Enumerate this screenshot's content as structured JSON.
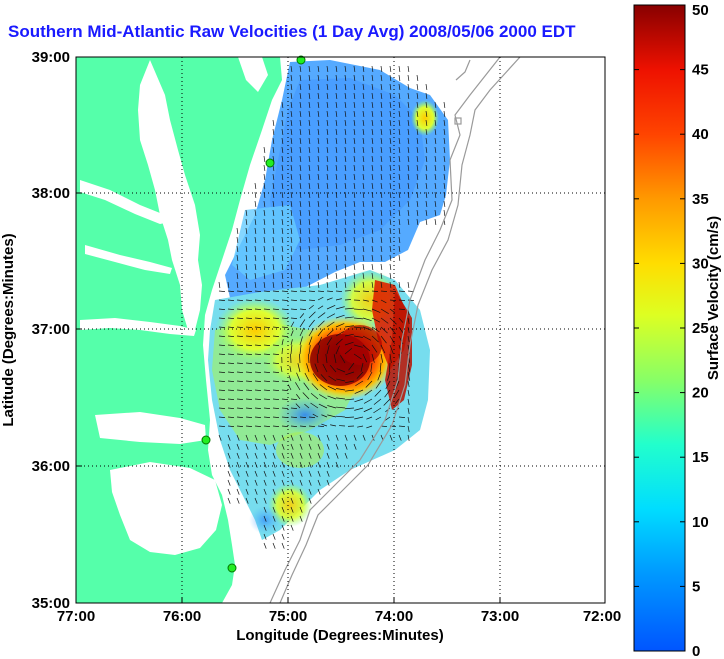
{
  "title": "Southern Mid-Atlantic Raw Velocities (1 Day Avg) 2008/05/06 2000 EDT",
  "x_axis": {
    "label": "Longitude (Degrees:Minutes)",
    "ticks": [
      "77:00",
      "76:00",
      "75:00",
      "74:00",
      "73:00",
      "72:00"
    ]
  },
  "y_axis": {
    "label": "Latitude (Degrees:Minutes)",
    "ticks": [
      "39:00",
      "38:00",
      "37:00",
      "36:00",
      "35:00"
    ]
  },
  "colorbar": {
    "label": "Surface Velocity (cm/s)",
    "ticks": [
      "50",
      "45",
      "40",
      "35",
      "30",
      "25",
      "20",
      "15",
      "10",
      "5",
      "0"
    ],
    "min": 0,
    "max": 50,
    "colormap": "jet"
  },
  "colors": {
    "land": "#55ffaa",
    "water": "#ffffff",
    "title": "#1a1aff",
    "stations": "#22ee22",
    "bathymetry": "#9a9a9a"
  },
  "map_extent": {
    "lon": [
      -77,
      -72
    ],
    "lat": [
      35,
      39
    ]
  },
  "features": {
    "grid_lines": "dotted",
    "land_mask": true,
    "bathymetry_contours": true,
    "velocity_vectors": true,
    "station_markers": 5
  }
}
